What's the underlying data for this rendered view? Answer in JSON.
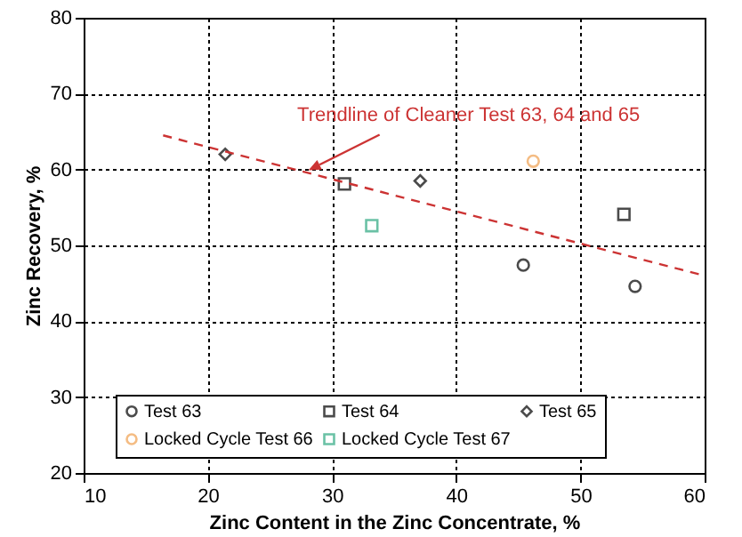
{
  "chart_data": {
    "type": "scatter",
    "xlabel": "Zinc Content in the Zinc Concentrate, %",
    "ylabel": "Zinc Recovery, %",
    "xlim": [
      10,
      60
    ],
    "xticks": [
      10,
      20,
      30,
      40,
      50,
      60
    ],
    "ylim": [
      20,
      80
    ],
    "yticks": [
      20,
      30,
      40,
      50,
      60,
      70,
      80
    ],
    "grid": true,
    "legend": "bottom",
    "annotations": [
      {
        "text": "Trendline of Cleaner Test 63, 64 and 65",
        "x": 28.1,
        "y": 59.9
      }
    ],
    "series": [
      {
        "name": "Test 63",
        "type": "scatter",
        "marker": "circle",
        "color": "#000000",
        "x": [
          45.4,
          54.4
        ],
        "values": [
          47.4,
          44.6
        ]
      },
      {
        "name": "Test 64",
        "type": "scatter",
        "marker": "square",
        "color": "#000000",
        "x": [
          31.0,
          53.5
        ],
        "values": [
          58.1,
          54.1
        ]
      },
      {
        "name": "Test 65",
        "type": "scatter",
        "marker": "diamond",
        "color": "#000000",
        "x": [
          21.4,
          37.1
        ],
        "values": [
          62.0,
          58.5
        ]
      },
      {
        "name": "Locked Cycle Test 66",
        "type": "scatter",
        "marker": "circle",
        "color": "#f0a050",
        "x": [
          46.2
        ],
        "values": [
          61.1
        ]
      },
      {
        "name": "Locked Cycle Test 67",
        "type": "scatter",
        "marker": "square",
        "color": "#2ca880",
        "x": [
          33.2
        ],
        "values": [
          52.6
        ]
      },
      {
        "type": "line",
        "line_style": "dashed",
        "color": "#cc3333",
        "x": [
          16.4,
          60
        ],
        "values": [
          64.5,
          46.0
        ]
      }
    ]
  }
}
